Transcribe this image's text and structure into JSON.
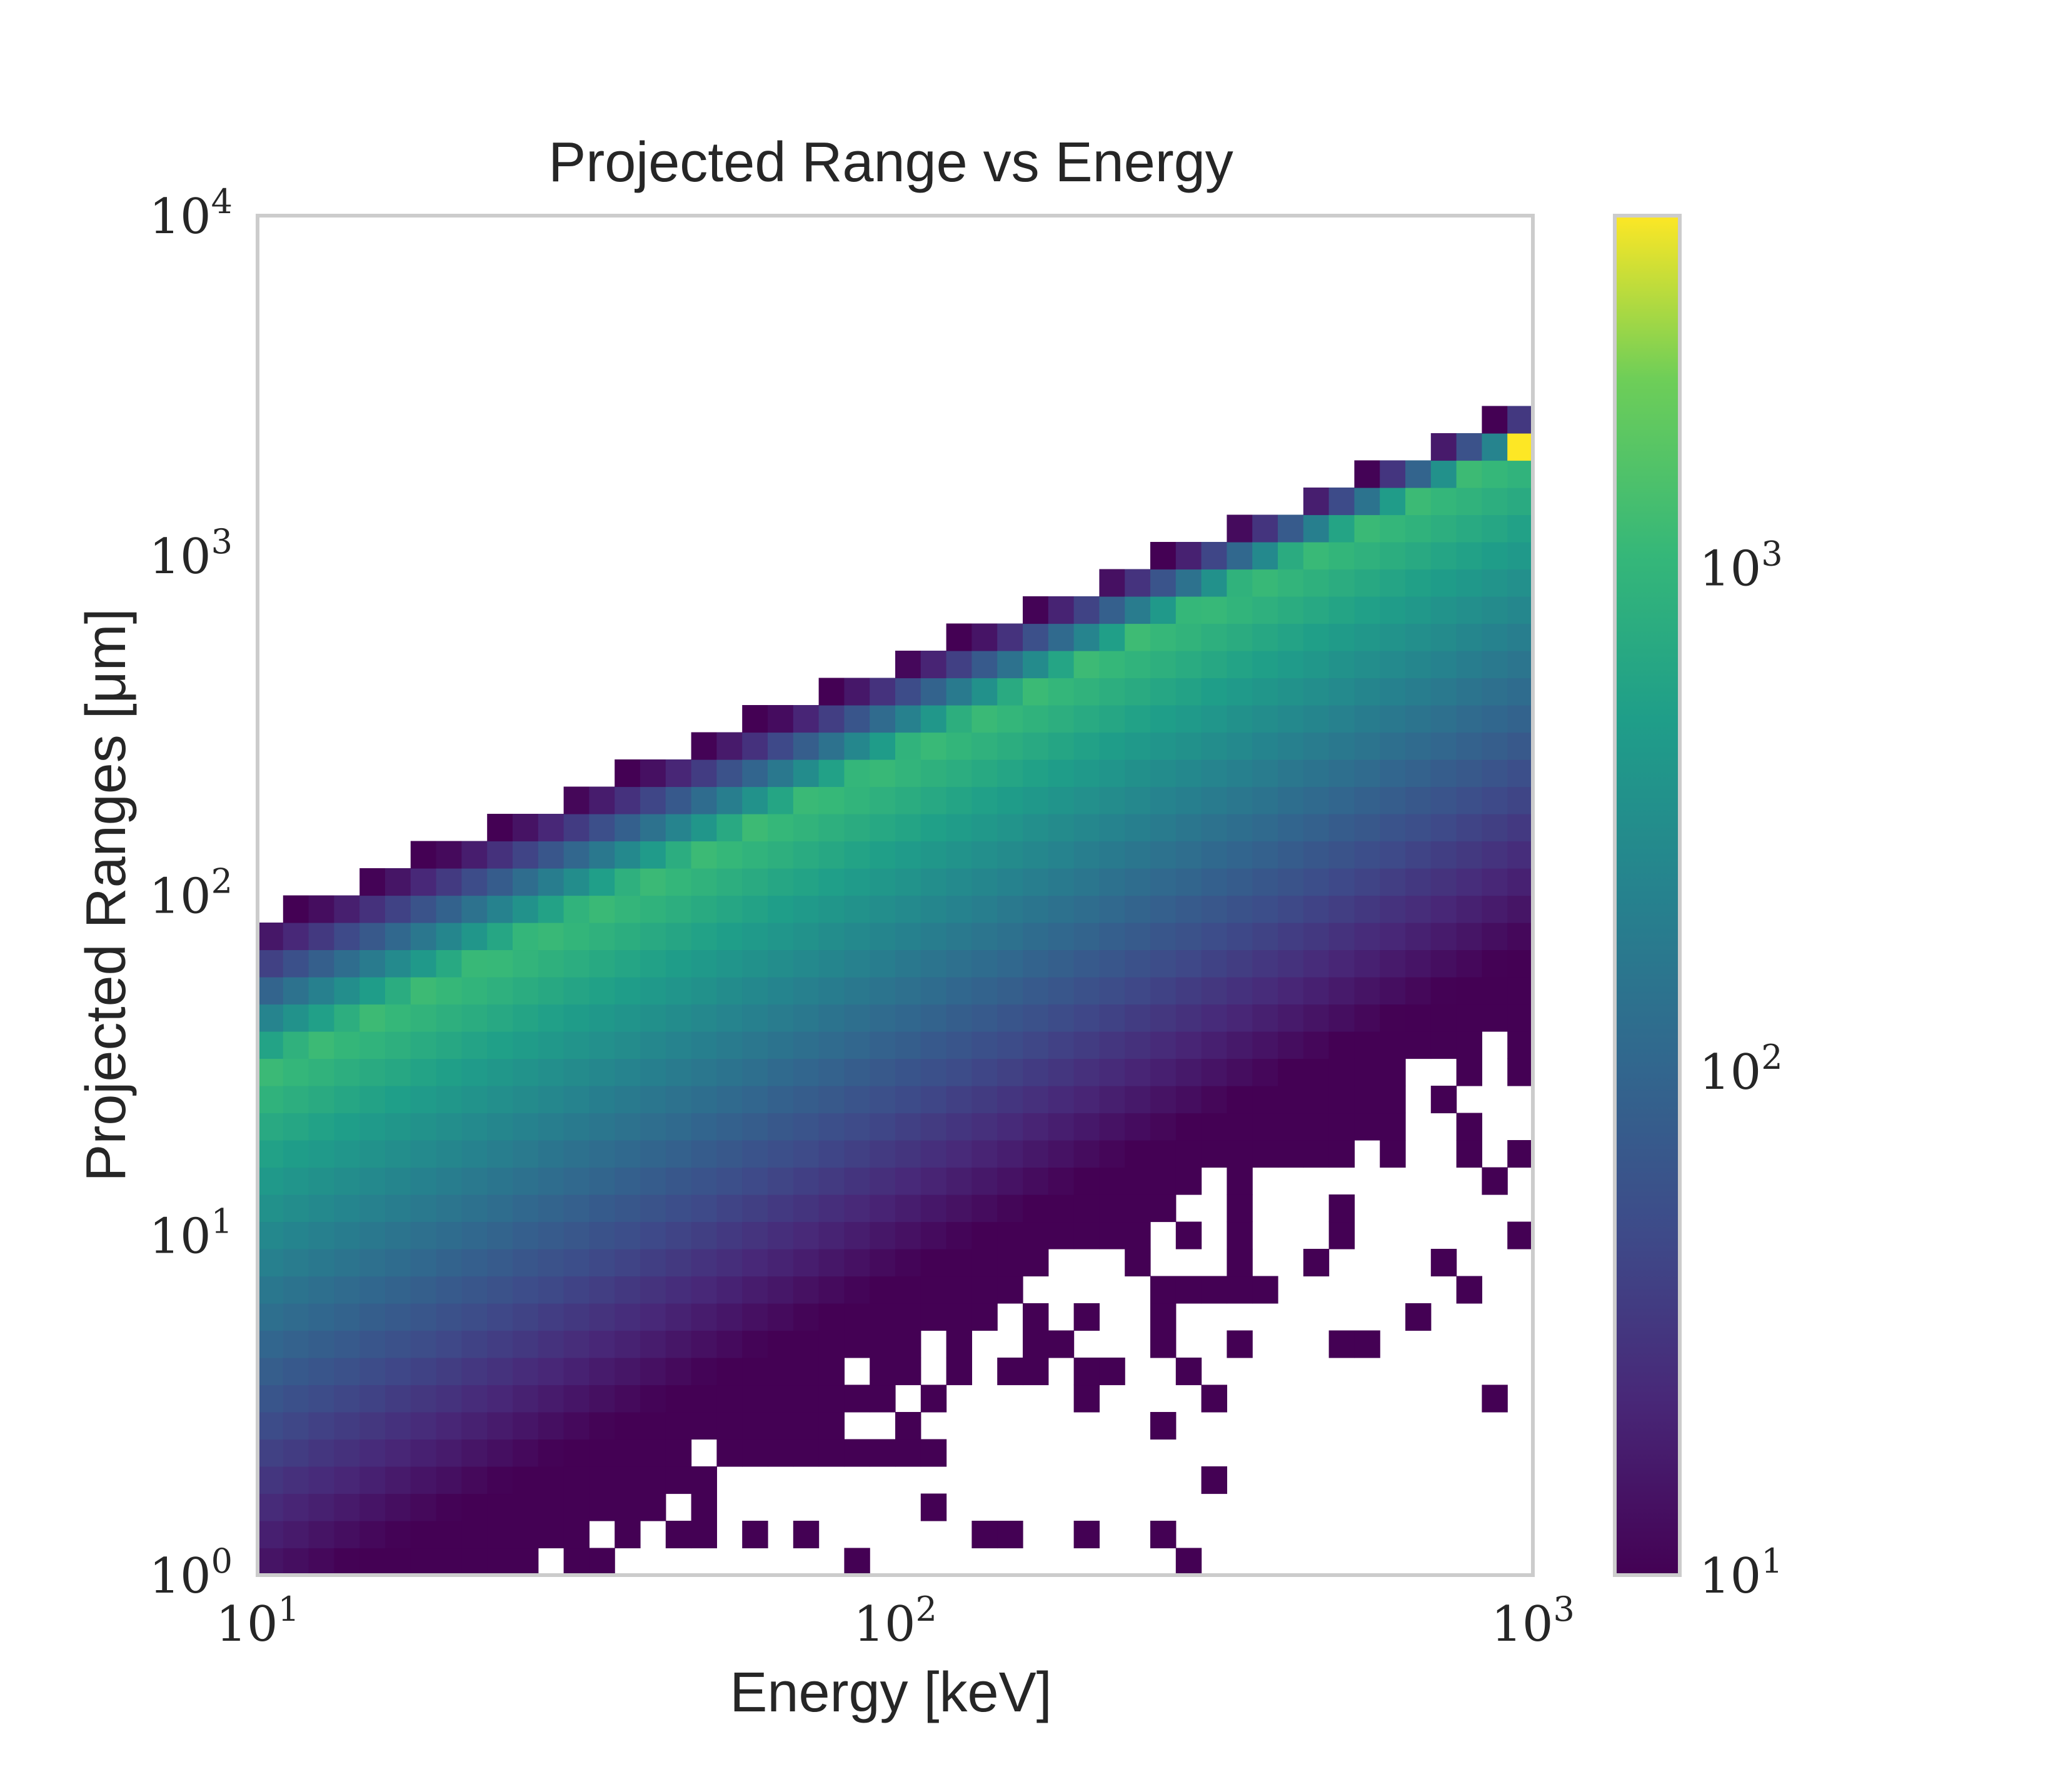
{
  "chart_data": {
    "type": "heatmap",
    "title": "Projected Range vs Energy",
    "xlabel": "Energy [keV]",
    "ylabel": "Projected Ranges [μm]",
    "xscale": "log",
    "yscale": "log",
    "xlim": [
      10,
      1000
    ],
    "ylim": [
      1,
      10000
    ],
    "xticks": [
      {
        "value": 10,
        "base": "10",
        "exp": "1"
      },
      {
        "value": 100,
        "base": "10",
        "exp": "2"
      },
      {
        "value": 1000,
        "base": "10",
        "exp": "3"
      }
    ],
    "yticks": [
      {
        "value": 1,
        "base": "10",
        "exp": "0"
      },
      {
        "value": 10,
        "base": "10",
        "exp": "1"
      },
      {
        "value": 100,
        "base": "10",
        "exp": "2"
      },
      {
        "value": 1000,
        "base": "10",
        "exp": "3"
      },
      {
        "value": 10000,
        "base": "10",
        "exp": "4"
      }
    ],
    "bins": {
      "x_count": 50,
      "y_count": 50
    },
    "colormap": "viridis",
    "colorbar": {
      "scale": "log",
      "range": [
        10,
        5000
      ],
      "ticks": [
        {
          "value": 10,
          "base": "10",
          "exp": "1"
        },
        {
          "value": 100,
          "base": "10",
          "exp": "2"
        },
        {
          "value": 1000,
          "base": "10",
          "exp": "3"
        }
      ]
    },
    "density_model": {
      "ridge_range_at_10keV": 30,
      "ridge_slope_loglog": 0.93,
      "upper_edge_at_10keV": 85,
      "upper_edge_at_1000keV": 2800,
      "lower_tail_width_decades_at_10keV": 1.6,
      "lower_tail_width_decades_at_1000keV": 1.5,
      "peak_count": 5000,
      "ridge_count_at_10keV": 1200,
      "ridge_count_at_1000keV": 1200
    },
    "grid": false,
    "frame_color": "#cccccc"
  }
}
